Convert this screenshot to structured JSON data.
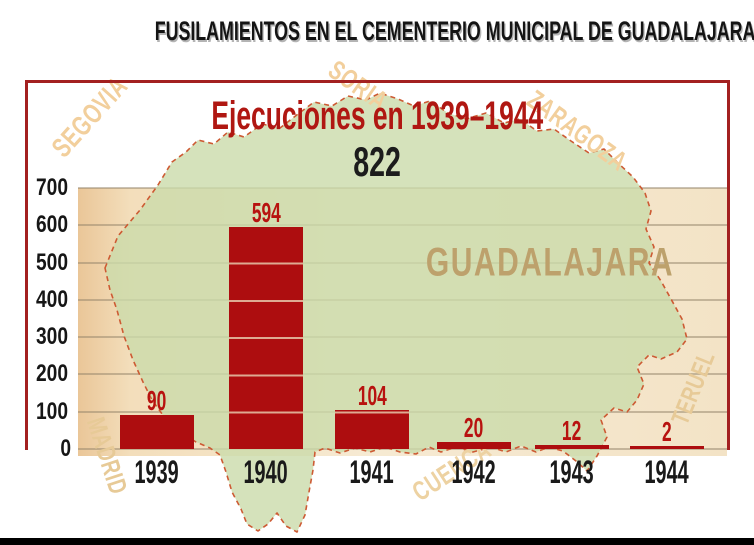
{
  "header": {
    "title": "FUSILAMIENTOS EN EL CEMENTERIO MUNICIPAL DE GUADALAJARA"
  },
  "chart_data": {
    "type": "bar",
    "title": "Ejecuciones en 1939–1944",
    "total_label": "822",
    "categories": [
      "1939",
      "1940",
      "1941",
      "1942",
      "1943",
      "1944"
    ],
    "values": [
      90,
      594,
      104,
      20,
      12,
      2
    ],
    "xlabel": "",
    "ylabel": "",
    "ylim": [
      0,
      700
    ],
    "yticks": [
      0,
      100,
      200,
      300,
      400,
      500,
      600,
      700
    ],
    "grid": true,
    "legend": "none",
    "bar_color": "#ad0d0f",
    "value_label_color": "#b8120f"
  },
  "map": {
    "region_label": "GUADALAJARA",
    "neighbors": {
      "segovia": "SEGOVIA",
      "soria": "SORIA",
      "zaragoza": "ZARAGOZA",
      "madrid": "MADRID",
      "teruel": "TERUEL",
      "cuenca": "CUENCA"
    }
  },
  "colors": {
    "box_border": "#a32020",
    "title_text": "#141414",
    "subtitle_red": "#b01712",
    "band_tan": "#f3e1c2",
    "map_green": "#dcead0",
    "map_outline": "#cd5a33",
    "province_label_tan": "#f2cf9c",
    "region_label_olive": "#bda16c",
    "bottom_bar": "#000000"
  }
}
